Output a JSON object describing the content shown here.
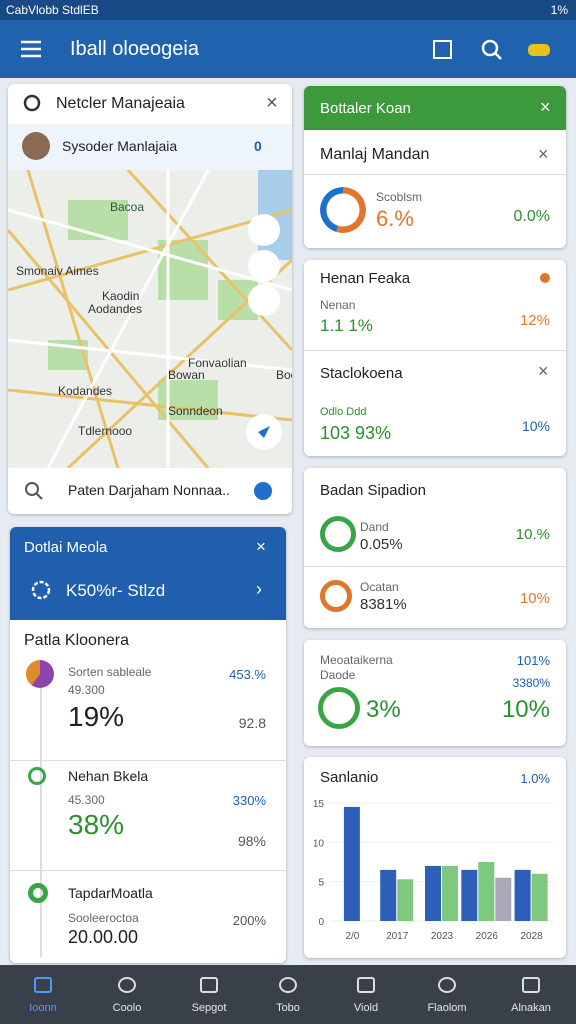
{
  "status_bar": {
    "left": "CabVlobb StdlEB",
    "battery": "1%"
  },
  "app_bar": {
    "title": "Iball oloeogeia"
  },
  "map_card": {
    "header": "Netcler Manajeaia",
    "user": "Sysoder Manlajaia",
    "badge": "0",
    "labels": [
      "Bacoa",
      "Smonaiv Aimes",
      "Kaodin",
      "Aodandes",
      "Fonvaolian",
      "Boe",
      "Bowan",
      "Kodandes",
      "Sonndeon",
      "Tdlernooo"
    ],
    "search": "Paten Darjaham Nonnaa.."
  },
  "panel": {
    "title": "Dotlai Meola",
    "close": "×",
    "row": "K50%r- Stlzd",
    "list_title": "Patla Kloonera",
    "items": [
      {
        "name": "Sorten sableale",
        "sub": "49.300",
        "big": "19%",
        "right_top": "453.%",
        "right_bottom": "92.8"
      },
      {
        "name": "Nehan Bkela",
        "sub": "45.300",
        "big": "38%",
        "right_top": "330%",
        "right_bottom": "98%"
      },
      {
        "name": "TapdarMoatla",
        "sub": "Sooleeroctoa",
        "big": "20.00.00",
        "right_top": "200%"
      }
    ]
  },
  "right": {
    "card1": {
      "header": "Bottaler Koan",
      "row": "Manlaj Mandan",
      "gauge_label": "Scoblsm",
      "gauge_value": "6.%",
      "right": "0.0%"
    },
    "card2": {
      "title1": "Henan Feaka",
      "sub1": "Nenan",
      "value1": "1.1 1%",
      "right1": "12%",
      "title2": "Staclokoena",
      "sub2": "Odlo Ddd",
      "value2": "103 93%",
      "right2": "10%"
    },
    "card3": {
      "title": "Badan Sipadion",
      "label1": "Dand",
      "value1": "0.05%",
      "right1": "10.%",
      "label2": "Ocatan",
      "value2": "8381%",
      "right2": "10%"
    },
    "card4": {
      "title": "Meoataikerna",
      "sub": "Daode",
      "big": "3%",
      "right_top": "101%",
      "right_mid": "3380%",
      "right_big": "10%"
    },
    "card5": {
      "title": "Sanlanio",
      "right": "1.0%"
    }
  },
  "chart_data": {
    "type": "bar",
    "categories": [
      "2/0",
      "2017",
      "2023",
      "2026",
      "2028"
    ],
    "series": [
      {
        "color": "#2e5fb8",
        "values": [
          14.5,
          6.5,
          7,
          6.5,
          6.5
        ]
      },
      {
        "color": "#7fc97f",
        "values": [
          null,
          5.3,
          7,
          7.5,
          6
        ]
      },
      {
        "color": "#a9a9b9",
        "values": [
          null,
          null,
          null,
          5.5,
          null
        ]
      }
    ],
    "ylim": [
      0,
      15
    ],
    "yticks": [
      0,
      5,
      10,
      15
    ]
  },
  "nav": [
    "Ioonn",
    "Coolo",
    "Sepgot",
    "Tobo",
    "Viold",
    "Flaolom",
    "Alnakan"
  ]
}
